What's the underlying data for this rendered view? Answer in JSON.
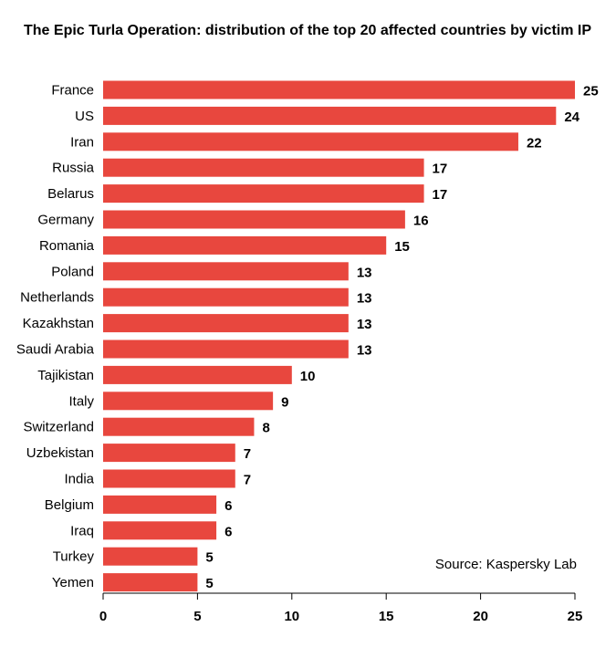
{
  "chart_data": {
    "type": "bar",
    "orientation": "horizontal",
    "title": "The Epic Turla Operation: distribution of the top 20 affected countries by victim IP",
    "categories": [
      "France",
      "US",
      "Iran",
      "Russia",
      "Belarus",
      "Germany",
      "Romania",
      "Poland",
      "Netherlands",
      "Kazakhstan",
      "Saudi Arabia",
      "Tajikistan",
      "Italy",
      "Switzerland",
      "Uzbekistan",
      "India",
      "Belgium",
      "Iraq",
      "Turkey",
      "Yemen"
    ],
    "values": [
      25,
      24,
      22,
      17,
      17,
      16,
      15,
      13,
      13,
      13,
      13,
      10,
      9,
      8,
      7,
      7,
      6,
      6,
      5,
      5
    ],
    "xlim": [
      0,
      25
    ],
    "xticks": [
      0,
      5,
      10,
      15,
      20,
      25
    ],
    "xlabel": "",
    "ylabel": "",
    "grid": false,
    "bar_color": "#e8473e",
    "source": "Source: Kaspersky Lab"
  }
}
